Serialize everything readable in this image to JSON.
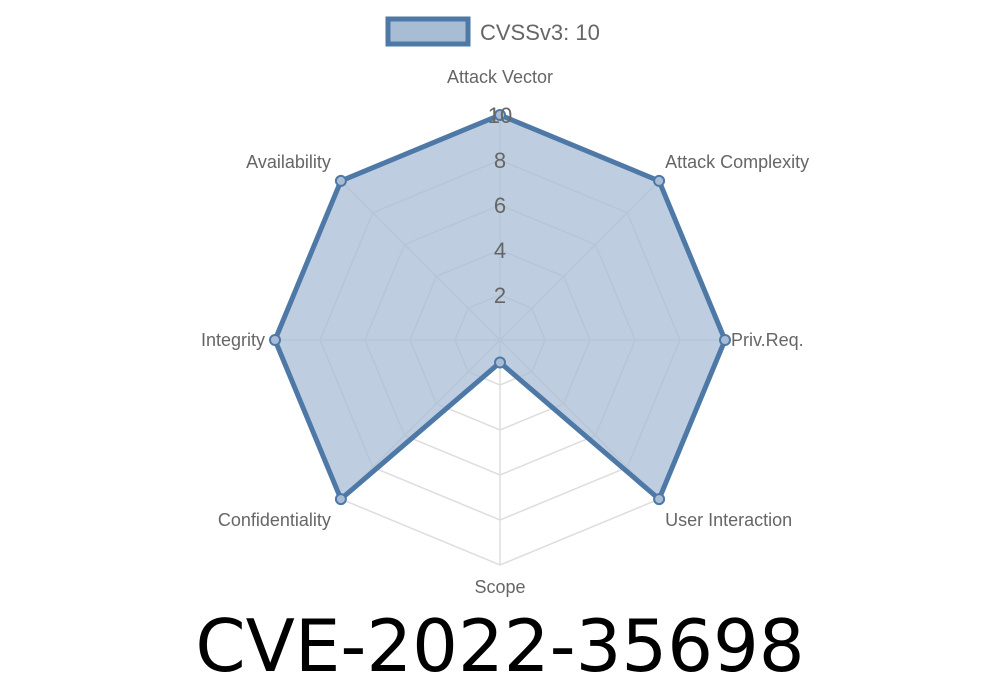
{
  "chart_data": {
    "type": "radar",
    "categories": [
      "Attack Vector",
      "Attack Complexity",
      "Priv.Req.",
      "User Interaction",
      "Scope",
      "Confidentiality",
      "Integrity",
      "Availability"
    ],
    "series": [
      {
        "name": "CVSSv3: 10",
        "values": [
          10,
          10,
          10,
          10,
          1,
          10,
          10,
          10
        ]
      }
    ],
    "rlim": [
      0,
      10
    ],
    "ticks": [
      "2",
      "4",
      "6",
      "8",
      "10"
    ],
    "tick_values": [
      2,
      4,
      6,
      8,
      10
    ],
    "legend": "top",
    "grid": true,
    "colors": {
      "line": "#4e79a7",
      "fill": "#a8bcd4",
      "grid": "#dddddd",
      "text": "#666666"
    }
  },
  "title": "CVE-2022-35698"
}
